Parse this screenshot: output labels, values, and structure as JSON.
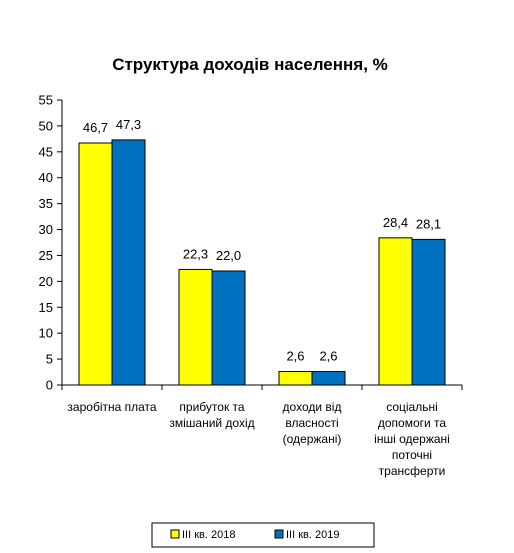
{
  "chart_data": {
    "type": "bar",
    "title": "Структура доходів населення, %",
    "xlabel": "",
    "ylabel": "",
    "ylim": [
      0,
      55
    ],
    "yticks": [
      0,
      5,
      10,
      15,
      20,
      25,
      30,
      35,
      40,
      45,
      50,
      55
    ],
    "grid": false,
    "legend_position": "bottom",
    "categories": [
      [
        "заробітна плата"
      ],
      [
        "прибуток та",
        "змішаний дохід"
      ],
      [
        "доходи від",
        "власності",
        "(одержані)"
      ],
      [
        "соціальні",
        "допомоги та",
        "інші одержані",
        "поточні",
        "трансферти"
      ]
    ],
    "series": [
      {
        "name": "ІІІ кв. 2018",
        "color": "#ffff00",
        "values": [
          46.7,
          22.3,
          2.6,
          28.4
        ],
        "labels": [
          "46,7",
          "22,3",
          "2,6",
          "28,4"
        ]
      },
      {
        "name": "ІІІ кв. 2019",
        "color": "#0070c0",
        "values": [
          47.3,
          22.0,
          2.6,
          28.1
        ],
        "labels": [
          "47,3",
          "22,0",
          "2,6",
          "28,1"
        ]
      }
    ]
  }
}
